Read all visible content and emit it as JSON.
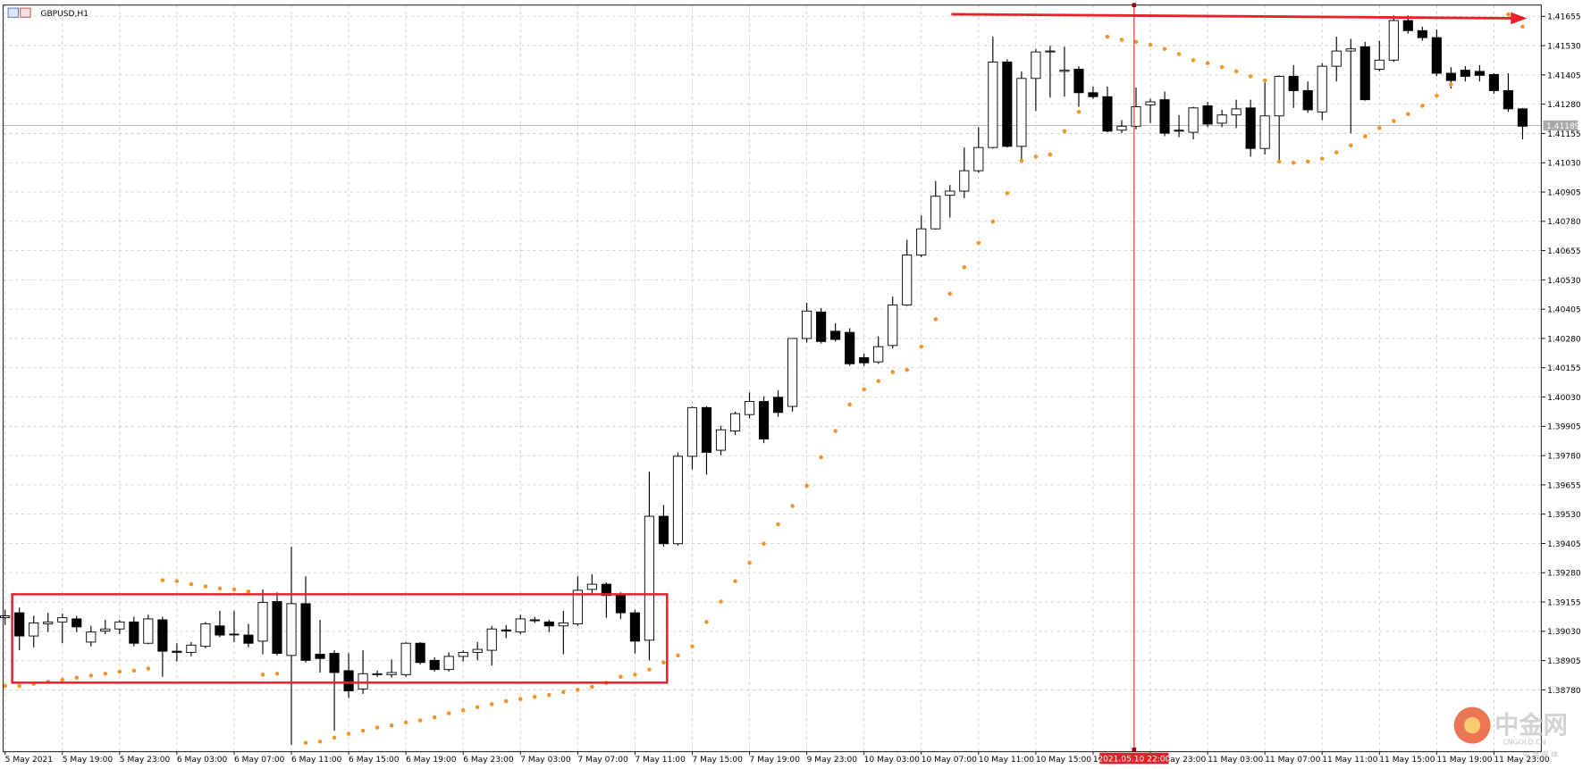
{
  "chart_data": {
    "type": "candlestick",
    "title": "GBPUSD,H1",
    "categories": [
      "5 May 2021",
      null,
      null,
      null,
      "5 May 19:00",
      null,
      null,
      null,
      "5 May 23:00",
      null,
      null,
      null,
      "6 May 03:00",
      null,
      null,
      null,
      "6 May 07:00",
      null,
      null,
      null,
      "6 May 11:00",
      null,
      null,
      null,
      "6 May 15:00",
      null,
      null,
      null,
      "6 May 19:00",
      null,
      null,
      null,
      "6 May 23:00",
      null,
      null,
      null,
      "7 May 03:00",
      null,
      null,
      null,
      "7 May 07:00",
      null,
      null,
      null,
      "7 May 11:00",
      null,
      null,
      null,
      "7 May 15:00",
      null,
      null,
      null,
      "7 May 19:00",
      null,
      null,
      null,
      "9 May 23:00",
      null,
      null,
      null,
      "10 May 03:00",
      null,
      null,
      null,
      "10 May 07:00",
      null,
      null,
      null,
      "10 May 11:00",
      null,
      null,
      null,
      "10 May 15:00",
      null,
      null,
      null,
      "10 May 19:00",
      null,
      null,
      null,
      "10 May 23:00",
      null,
      null,
      null,
      "11 May 03:00",
      null,
      null,
      null,
      "11 May 07:00",
      null,
      null,
      null,
      "11 May 11:00",
      null,
      null,
      null,
      "11 May 15:00",
      null,
      null,
      null,
      "11 May 19:00",
      null,
      null,
      null,
      "11 May 23:00",
      null,
      null
    ],
    "open": [
      1.39088,
      1.39109,
      1.3901,
      1.39062,
      1.3907,
      1.39083,
      1.38984,
      1.39031,
      1.3904,
      1.3907,
      1.38979,
      1.39079,
      1.38945,
      1.3894,
      1.38966,
      1.39053,
      1.39018,
      1.39014,
      1.38988,
      1.39157,
      1.38927,
      1.39148,
      1.38932,
      1.38936,
      1.38862,
      1.38784,
      1.38845,
      1.38845,
      1.38845,
      1.38979,
      1.38906,
      1.38867,
      1.38923,
      1.3894,
      1.38949,
      1.39036,
      1.39027,
      1.39079,
      1.3907,
      1.39053,
      1.39062,
      1.39209,
      1.39231,
      1.39183,
      1.39109,
      1.38992,
      1.39521,
      1.39404,
      1.39777,
      1.39985,
      1.39803,
      1.39885,
      1.39955,
      1.40011,
      1.40029,
      1.3999,
      1.4028,
      1.40393,
      1.40311,
      1.40306,
      1.40198,
      1.4018,
      1.4025,
      1.40423,
      1.40636,
      1.40748,
      1.40891,
      1.40909,
      1.40996,
      1.41095,
      1.4146,
      1.411,
      1.4139,
      1.41503,
      1.4142,
      1.41429,
      1.41329,
      1.41312,
      1.41169,
      1.41186,
      1.41277,
      1.41299,
      1.41169,
      1.4116,
      1.41273,
      1.41199,
      1.41234,
      1.41264,
      1.41091,
      1.4123,
      1.41399,
      1.41338,
      1.41247,
      1.41442,
      1.41507,
      1.41525,
      1.41429,
      1.41468,
      1.41637,
      1.41594,
      1.41564,
      1.41412,
      1.41425,
      1.4142,
      1.41407,
      1.41338,
      1.4126
    ],
    "high": [
      1.39122,
      1.39131,
      1.39096,
      1.39109,
      1.39105,
      1.39096,
      1.39053,
      1.39079,
      1.39079,
      1.39092,
      1.39101,
      1.39092,
      1.38979,
      1.38984,
      1.3907,
      1.39118,
      1.39118,
      1.39062,
      1.39209,
      1.39196,
      1.39391,
      1.39265,
      1.39079,
      1.38949,
      1.38936,
      1.38949,
      1.38862,
      1.3891,
      1.38984,
      1.38984,
      1.38919,
      1.3894,
      1.38949,
      1.38984,
      1.39053,
      1.39057,
      1.39101,
      1.39092,
      1.39079,
      1.39118,
      1.39265,
      1.39274,
      1.39239,
      1.39196,
      1.39122,
      1.39712,
      1.39569,
      1.39794,
      1.3999,
      1.3999,
      1.39907,
      1.39968,
      1.4005,
      1.40033,
      1.40059,
      1.4028,
      1.40432,
      1.4041,
      1.40345,
      1.40324,
      1.40215,
      1.40289,
      1.40458,
      1.40701,
      1.40805,
      1.40952,
      1.40935,
      1.41095,
      1.41182,
      1.41568,
      1.41472,
      1.4142,
      1.41516,
      1.41529,
      1.41525,
      1.41442,
      1.41355,
      1.41355,
      1.41212,
      1.41351,
      1.41303,
      1.41334,
      1.41234,
      1.41269,
      1.4129,
      1.41256,
      1.41299,
      1.41299,
      1.41373,
      1.41403,
      1.41447,
      1.41377,
      1.41455,
      1.41568,
      1.41559,
      1.41546,
      1.41551,
      1.41659,
      1.41659,
      1.41611,
      1.41598,
      1.41438,
      1.41442,
      1.41447,
      1.41412,
      1.41412,
      1.41264
    ],
    "low": [
      1.39057,
      1.38949,
      1.38962,
      1.39027,
      1.38979,
      1.39027,
      1.38966,
      1.39018,
      1.39018,
      1.38966,
      1.38975,
      1.38836,
      1.38901,
      1.38923,
      1.38958,
      1.39005,
      1.38984,
      1.38962,
      1.38932,
      1.38927,
      1.38546,
      1.38897,
      1.38854,
      1.38606,
      1.38745,
      1.38763,
      1.38836,
      1.38832,
      1.38836,
      1.38888,
      1.38858,
      1.38858,
      1.38901,
      1.38906,
      1.38884,
      1.39001,
      1.39018,
      1.39066,
      1.39027,
      1.38932,
      1.39053,
      1.39187,
      1.39088,
      1.39083,
      1.38936,
      1.38906,
      1.39391,
      1.39396,
      1.39721,
      1.39699,
      1.39781,
      1.39868,
      1.39938,
      1.39833,
      1.39946,
      1.39968,
      1.40263,
      1.40258,
      1.40267,
      1.40163,
      1.40163,
      1.40172,
      1.40237,
      1.40419,
      1.40627,
      1.40744,
      1.40796,
      1.40879,
      1.40987,
      1.41091,
      1.41095,
      1.41035,
      1.41251,
      1.41308,
      1.41312,
      1.41269,
      1.41303,
      1.4116,
      1.41156,
      1.41173,
      1.41199,
      1.41143,
      1.41139,
      1.4113,
      1.41182,
      1.41182,
      1.41178,
      1.41056,
      1.41065,
      1.4103,
      1.41264,
      1.41243,
      1.41212,
      1.41377,
      1.41156,
      1.41295,
      1.4142,
      1.4146,
      1.41581,
      1.41551,
      1.41399,
      1.41347,
      1.41377,
      1.41377,
      1.41325,
      1.41247,
      1.4113
    ],
    "close": [
      1.39096,
      1.3901,
      1.39066,
      1.3907,
      1.39088,
      1.39049,
      1.39027,
      1.3904,
      1.3907,
      1.38979,
      1.39083,
      1.38945,
      1.3894,
      1.38971,
      1.39062,
      1.39014,
      1.39018,
      1.38979,
      1.39153,
      1.38936,
      1.39148,
      1.38906,
      1.38914,
      1.38854,
      1.38776,
      1.38849,
      1.38849,
      1.38854,
      1.38979,
      1.38897,
      1.38867,
      1.38923,
      1.3894,
      1.38953,
      1.3904,
      1.39031,
      1.39083,
      1.39075,
      1.39053,
      1.39066,
      1.39205,
      1.39231,
      1.39183,
      1.39109,
      1.38988,
      1.39521,
      1.39404,
      1.39777,
      1.39985,
      1.39794,
      1.3989,
      1.39959,
      1.40011,
      1.39851,
      1.39964,
      1.4028,
      1.40397,
      1.40267,
      1.40276,
      1.40172,
      1.40176,
      1.40245,
      1.40423,
      1.40636,
      1.40748,
      1.40887,
      1.40909,
      1.40996,
      1.41095,
      1.4146,
      1.411,
      1.4139,
      1.41503,
      1.41507,
      1.41425,
      1.41329,
      1.41312,
      1.41165,
      1.41186,
      1.41269,
      1.4129,
      1.41156,
      1.41165,
      1.41264,
      1.41195,
      1.41234,
      1.4126,
      1.41091,
      1.4123,
      1.41399,
      1.41338,
      1.41256,
      1.41442,
      1.41507,
      1.41516,
      1.41299,
      1.41468,
      1.41637,
      1.41594,
      1.41564,
      1.41412,
      1.41381,
      1.41399,
      1.41403,
      1.41338,
      1.4126,
      1.41186
    ],
    "up_color": "#ffffff",
    "down_color": "#000000",
    "indicator": {
      "color": "#f7931e",
      "values": [
        1.38797,
        1.38797,
        1.38806,
        1.38815,
        1.38823,
        1.38832,
        1.38841,
        1.38849,
        1.38858,
        1.38862,
        1.38871,
        1.39248,
        1.39244,
        1.39231,
        1.39222,
        1.39213,
        1.39209,
        1.392,
        1.38845,
        1.38849,
        null,
        1.38554,
        1.38559,
        1.38576,
        1.38593,
        1.38606,
        1.38619,
        1.38628,
        1.38641,
        1.3865,
        1.38663,
        1.3868,
        1.38693,
        1.38706,
        1.38719,
        1.38732,
        1.38741,
        1.3875,
        1.38758,
        1.38771,
        1.3878,
        1.38793,
        1.3881,
        1.38836,
        1.38845,
        1.38867,
        1.38897,
        1.38927,
        1.38966,
        1.3907,
        1.39157,
        1.39244,
        1.39322,
        1.39404,
        1.39487,
        1.39565,
        1.39651,
        1.39773,
        1.39885,
        1.39998,
        1.40063,
        1.40098,
        1.40137,
        1.40146,
        1.40245,
        1.40362,
        1.40471,
        1.40584,
        1.40688,
        1.40779,
        1.409,
        1.41039,
        1.41056,
        1.41065,
        1.41165,
        1.41247,
        null,
        1.41568,
        1.41555,
        1.41546,
        1.41533,
        1.41516,
        1.41494,
        1.41468,
        1.41455,
        1.41438,
        1.4142,
        1.41399,
        1.41381,
        1.41035,
        1.4103,
        1.41035,
        1.41048,
        1.41074,
        1.41104,
        1.41143,
        1.41178,
        1.41208,
        1.41238,
        1.41273,
        1.41316,
        1.41364,
        null,
        null,
        null,
        1.41663,
        1.41611
      ]
    },
    "ylim": [
      1.38516,
      1.41703
    ],
    "yticks": [
      1.41655,
      {
        "value": 1.4153,
        "label": "1.41530"
      },
      1.41405,
      {
        "value": 1.4128,
        "label": "1.41280"
      },
      1.41155,
      {
        "value": 1.4103,
        "label": "1.41030"
      },
      1.40905,
      {
        "value": 1.4078,
        "label": "1.40780"
      },
      1.40655,
      {
        "value": 1.4053,
        "label": "1.40530"
      },
      1.40405,
      {
        "value": 1.4028,
        "label": "1.40280"
      },
      1.40155,
      {
        "value": 1.4003,
        "label": "1.40030"
      },
      1.39905,
      {
        "value": 1.3978,
        "label": "1.39780"
      },
      1.39655,
      {
        "value": 1.3953,
        "label": "1.39530"
      },
      1.39405,
      {
        "value": 1.3928,
        "label": "1.39280"
      },
      1.39155,
      {
        "value": 1.3903,
        "label": "1.39030"
      },
      1.38905,
      {
        "value": 1.3878,
        "label": "1.38780"
      }
    ],
    "grid": true,
    "current_price": 1.41189,
    "cursor_label": "2021.05.10 22:00",
    "watermark": {
      "logo": "中金网",
      "site": "CNGOLD.CN",
      "caption": "中 金 媒 体"
    }
  }
}
